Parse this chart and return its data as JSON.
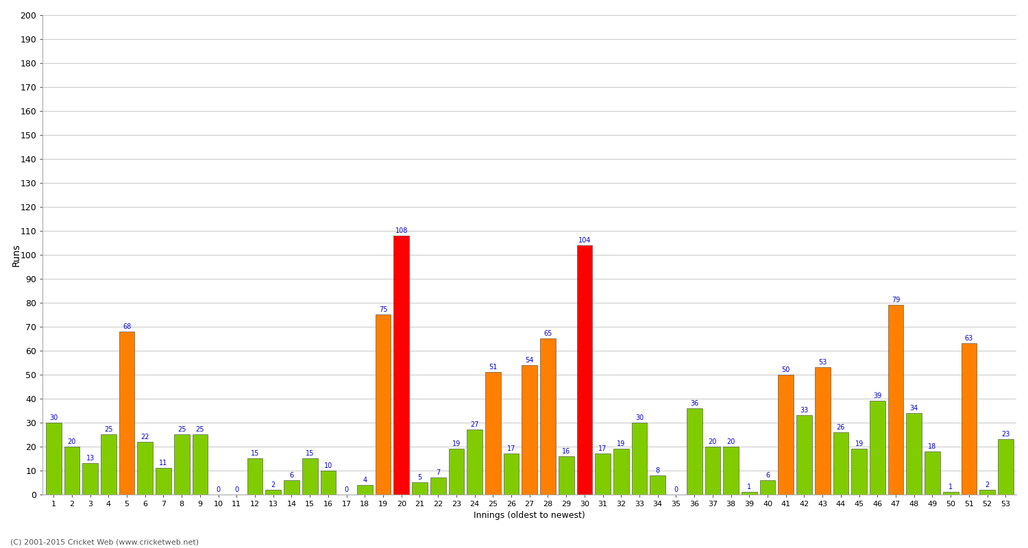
{
  "xlabel": "Innings (oldest to newest)",
  "ylabel": "Runs",
  "footer": "(C) 2001-2015 Cricket Web (www.cricketweb.net)",
  "ylim": [
    0,
    200
  ],
  "yticks": [
    0,
    10,
    20,
    30,
    40,
    50,
    60,
    70,
    80,
    90,
    100,
    110,
    120,
    130,
    140,
    150,
    160,
    170,
    180,
    190,
    200
  ],
  "innings": [
    1,
    2,
    3,
    4,
    5,
    6,
    7,
    8,
    9,
    10,
    11,
    12,
    13,
    14,
    15,
    16,
    17,
    18,
    19,
    20,
    21,
    22,
    23,
    24,
    25,
    26,
    27,
    28,
    29,
    30,
    31,
    32,
    33,
    34,
    35,
    36,
    37,
    38,
    39,
    40,
    41,
    42,
    43,
    44,
    45,
    46,
    47,
    48,
    49,
    50,
    51,
    52,
    53
  ],
  "values": [
    30,
    20,
    13,
    25,
    68,
    22,
    11,
    25,
    25,
    0,
    0,
    15,
    2,
    6,
    15,
    10,
    0,
    4,
    75,
    108,
    5,
    7,
    19,
    27,
    51,
    17,
    54,
    65,
    16,
    104,
    17,
    19,
    30,
    8,
    0,
    36,
    20,
    20,
    1,
    6,
    50,
    33,
    53,
    26,
    19,
    39,
    79,
    34,
    18,
    1,
    63,
    2,
    23
  ],
  "colors": [
    "#80cc00",
    "#80cc00",
    "#80cc00",
    "#80cc00",
    "#ff8000",
    "#80cc00",
    "#80cc00",
    "#80cc00",
    "#80cc00",
    "#80cc00",
    "#80cc00",
    "#80cc00",
    "#80cc00",
    "#80cc00",
    "#80cc00",
    "#80cc00",
    "#80cc00",
    "#80cc00",
    "#ff8000",
    "#ff0000",
    "#80cc00",
    "#80cc00",
    "#80cc00",
    "#80cc00",
    "#ff8000",
    "#80cc00",
    "#ff8000",
    "#ff8000",
    "#80cc00",
    "#ff0000",
    "#80cc00",
    "#80cc00",
    "#80cc00",
    "#80cc00",
    "#80cc00",
    "#80cc00",
    "#80cc00",
    "#80cc00",
    "#80cc00",
    "#80cc00",
    "#ff8000",
    "#80cc00",
    "#ff8000",
    "#80cc00",
    "#80cc00",
    "#80cc00",
    "#ff8000",
    "#80cc00",
    "#80cc00",
    "#80cc00",
    "#ff8000",
    "#80cc00",
    "#80cc00"
  ],
  "label_color": "#0000cc",
  "background_color": "#ffffff",
  "grid_color": "#cccccc",
  "bar_edge_color": "#404040",
  "title_color": "#000000",
  "axis_label_color": "#000000",
  "tick_label_color": "#000000",
  "fig_width": 15.0,
  "fig_height": 8.0,
  "dpi": 100
}
